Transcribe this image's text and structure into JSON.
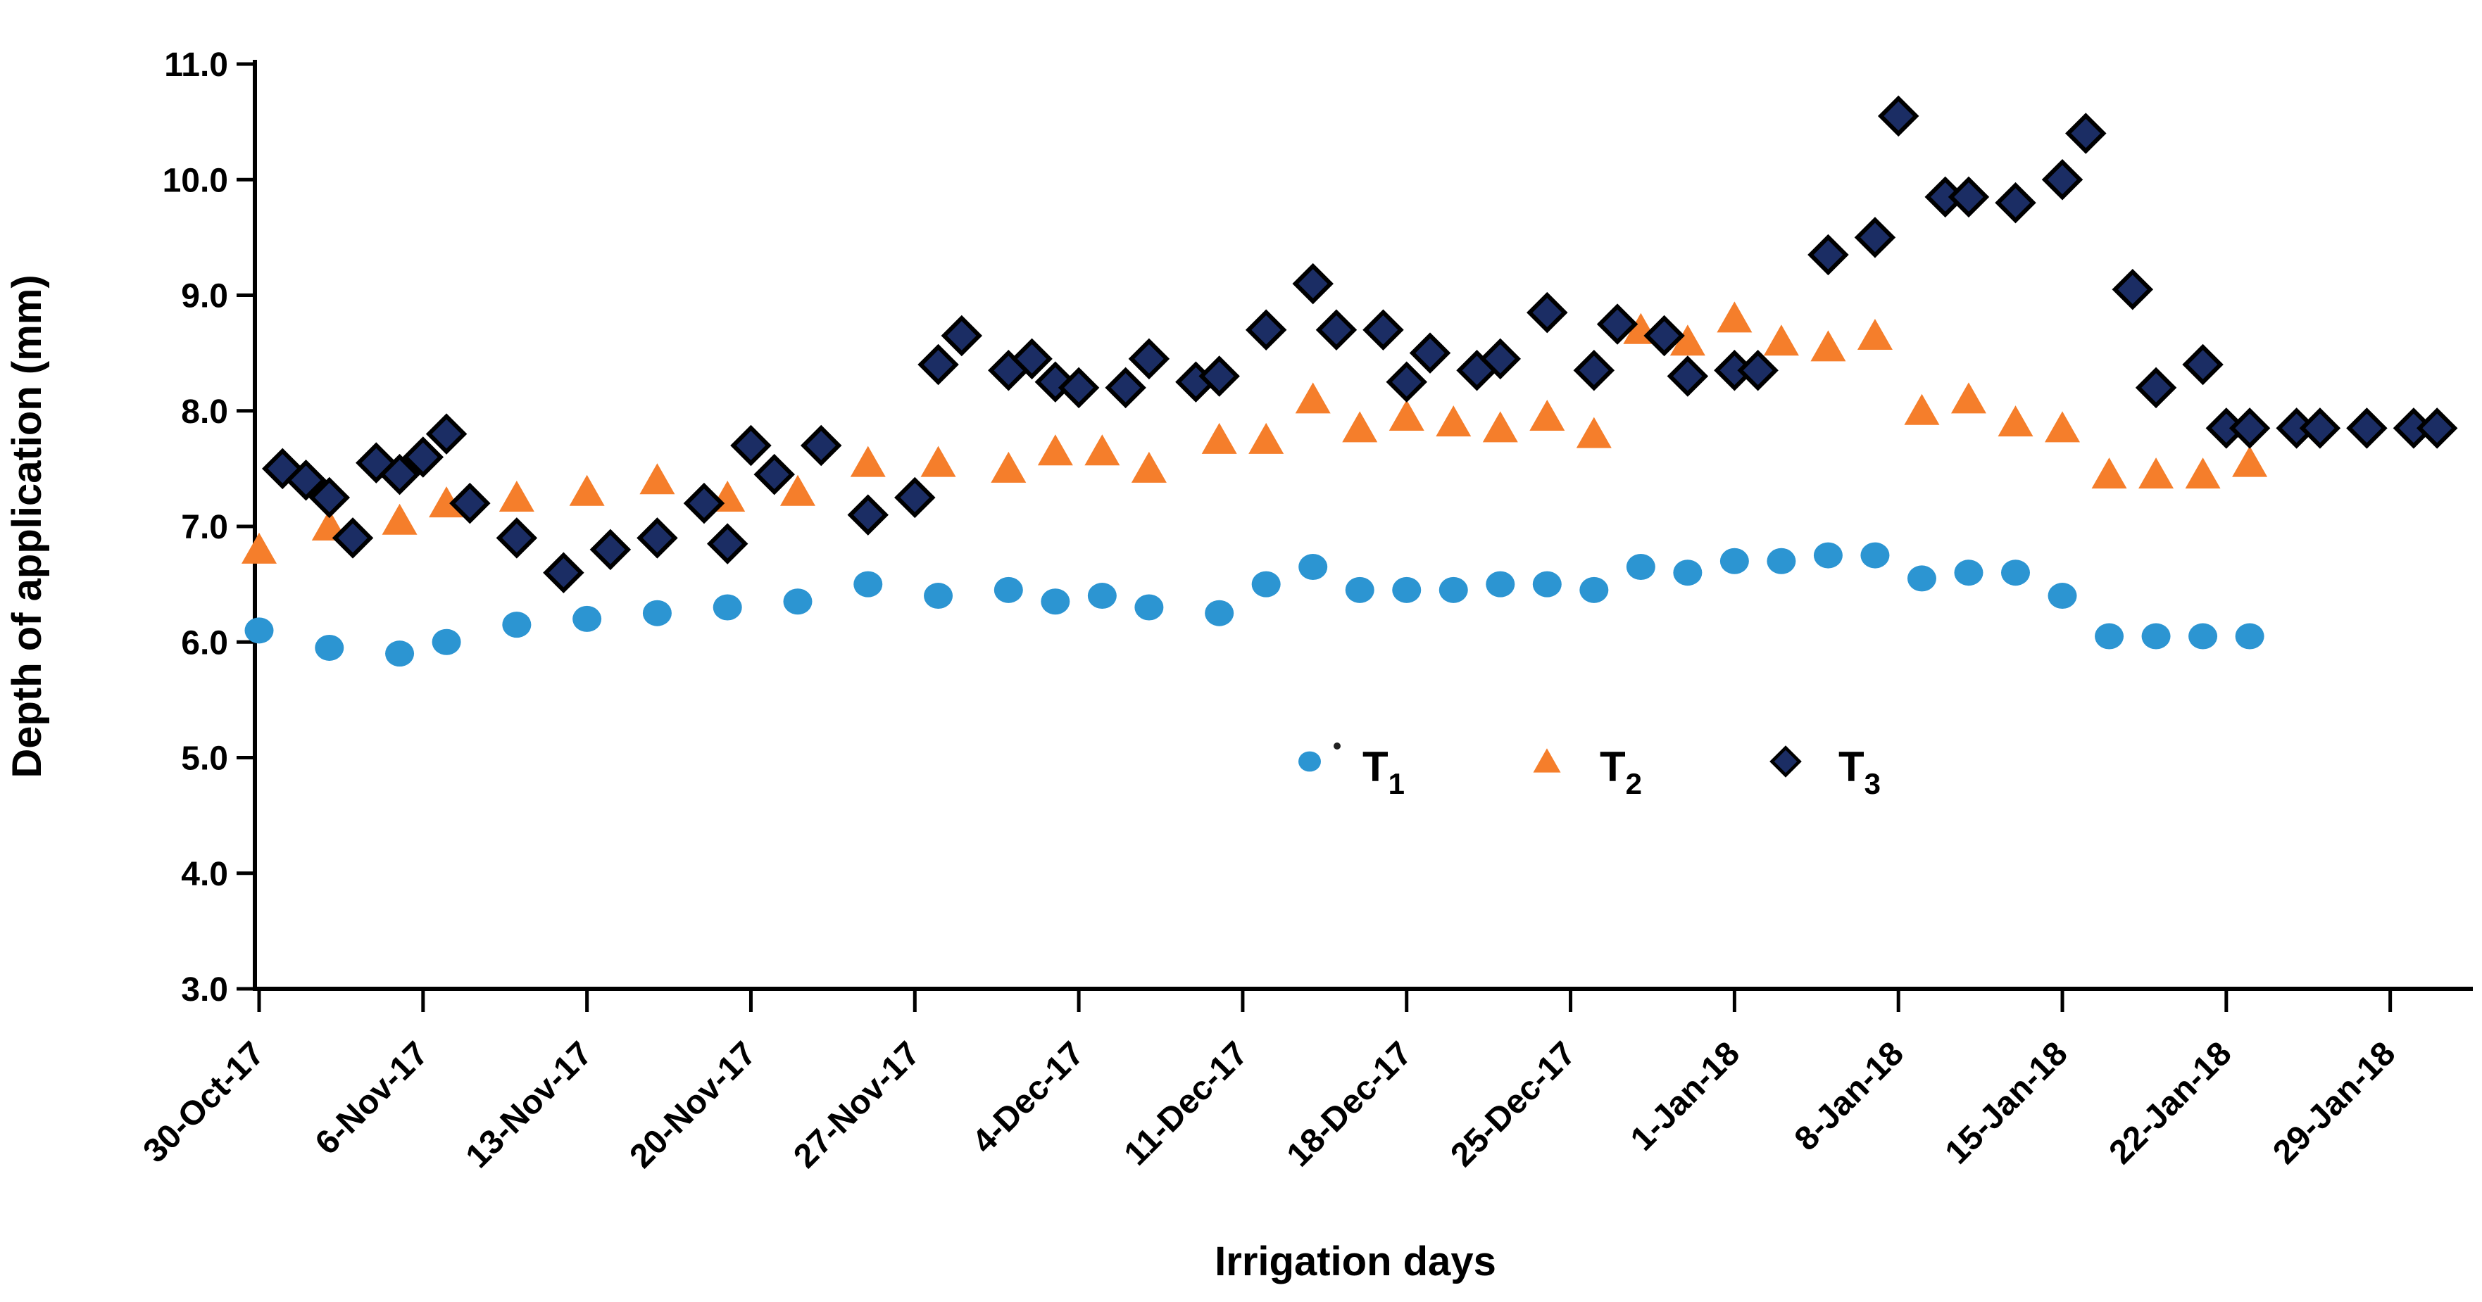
{
  "chart_data": {
    "type": "scatter",
    "title": "",
    "x_axis": {
      "title": "Irrigation days",
      "unit": "dates, weekly ticks",
      "tick_labels": [
        "30-Oct-17",
        "6-Nov-17",
        "13-Nov-17",
        "20-Nov-17",
        "27-Nov-17",
        "4-Dec-17",
        "11-Dec-17",
        "18-Dec-17",
        "25-Dec-17",
        "1-Jan-18",
        "8-Jan-18",
        "15-Jan-18",
        "22-Jan-18",
        "29-Jan-18"
      ],
      "tick_days": [
        0,
        7,
        14,
        21,
        28,
        35,
        42,
        49,
        56,
        63,
        70,
        77,
        84,
        91
      ],
      "day_zero_date": "30-Oct-17",
      "grid": false
    },
    "y_axis": {
      "title": "Depth of application (mm)",
      "min": 3.0,
      "max": 11.0,
      "step": 1.0,
      "tick_labels": [
        "3.0",
        "4.0",
        "5.0",
        "6.0",
        "7.0",
        "8.0",
        "9.0",
        "10.0",
        "11.0"
      ],
      "tick_values": [
        3,
        4,
        5,
        6,
        7,
        8,
        9,
        10,
        11
      ],
      "grid": false
    },
    "series": [
      {
        "name": "T1",
        "label_base": "T",
        "label_sub": "1",
        "marker": "circle",
        "color": "#2C95D2",
        "points_day_value": [
          [
            0,
            6.1
          ],
          [
            3,
            5.95
          ],
          [
            6,
            5.9
          ],
          [
            8,
            6.0
          ],
          [
            11,
            6.15
          ],
          [
            14,
            6.2
          ],
          [
            17,
            6.25
          ],
          [
            20,
            6.3
          ],
          [
            23,
            6.35
          ],
          [
            26,
            6.5
          ],
          [
            29,
            6.4
          ],
          [
            32,
            6.45
          ],
          [
            34,
            6.35
          ],
          [
            36,
            6.4
          ],
          [
            38,
            6.3
          ],
          [
            41,
            6.25
          ],
          [
            43,
            6.5
          ],
          [
            45,
            6.65
          ],
          [
            47,
            6.45
          ],
          [
            49,
            6.45
          ],
          [
            51,
            6.45
          ],
          [
            53,
            6.5
          ],
          [
            55,
            6.5
          ],
          [
            57,
            6.45
          ],
          [
            59,
            6.65
          ],
          [
            61,
            6.6
          ],
          [
            63,
            6.7
          ],
          [
            65,
            6.7
          ],
          [
            67,
            6.75
          ],
          [
            69,
            6.75
          ],
          [
            71,
            6.55
          ],
          [
            73,
            6.6
          ],
          [
            75,
            6.6
          ],
          [
            77,
            6.4
          ],
          [
            79,
            6.05
          ],
          [
            81,
            6.05
          ],
          [
            83,
            6.05
          ],
          [
            85,
            6.05
          ]
        ]
      },
      {
        "name": "T2",
        "label_base": "T",
        "label_sub": "2",
        "marker": "triangle",
        "color": "#F57E2B",
        "points_day_value": [
          [
            0,
            6.8
          ],
          [
            3,
            7.0
          ],
          [
            6,
            7.05
          ],
          [
            8,
            7.2
          ],
          [
            11,
            7.25
          ],
          [
            14,
            7.3
          ],
          [
            17,
            7.4
          ],
          [
            20,
            7.25
          ],
          [
            23,
            7.3
          ],
          [
            26,
            7.55
          ],
          [
            29,
            7.55
          ],
          [
            32,
            7.5
          ],
          [
            34,
            7.65
          ],
          [
            36,
            7.65
          ],
          [
            38,
            7.5
          ],
          [
            41,
            7.75
          ],
          [
            43,
            7.75
          ],
          [
            45,
            8.1
          ],
          [
            47,
            7.85
          ],
          [
            49,
            7.95
          ],
          [
            51,
            7.9
          ],
          [
            53,
            7.85
          ],
          [
            55,
            7.95
          ],
          [
            57,
            7.8
          ],
          [
            59,
            8.7
          ],
          [
            61,
            8.6
          ],
          [
            63,
            8.8
          ],
          [
            65,
            8.6
          ],
          [
            67,
            8.55
          ],
          [
            69,
            8.65
          ],
          [
            71,
            8.0
          ],
          [
            73,
            8.1
          ],
          [
            75,
            7.9
          ],
          [
            77,
            7.85
          ],
          [
            79,
            7.45
          ],
          [
            81,
            7.45
          ],
          [
            83,
            7.45
          ],
          [
            85,
            7.55
          ]
        ]
      },
      {
        "name": "T3",
        "label_base": "T",
        "label_sub": "3",
        "marker": "diamond",
        "color": "#1B2D64",
        "stroke": "#000000",
        "points_day_value": [
          [
            1,
            7.5
          ],
          [
            2,
            7.4
          ],
          [
            3,
            7.25
          ],
          [
            4,
            6.9
          ],
          [
            5,
            7.55
          ],
          [
            6,
            7.45
          ],
          [
            7,
            7.6
          ],
          [
            8,
            7.8
          ],
          [
            9,
            7.2
          ],
          [
            11,
            6.9
          ],
          [
            13,
            6.6
          ],
          [
            15,
            6.8
          ],
          [
            17,
            6.9
          ],
          [
            19,
            7.2
          ],
          [
            20,
            6.85
          ],
          [
            21,
            7.7
          ],
          [
            22,
            7.45
          ],
          [
            24,
            7.7
          ],
          [
            26,
            7.1
          ],
          [
            28,
            7.25
          ],
          [
            29,
            8.4
          ],
          [
            30,
            8.65
          ],
          [
            32,
            8.35
          ],
          [
            33,
            8.45
          ],
          [
            34,
            8.25
          ],
          [
            35,
            8.2
          ],
          [
            37,
            8.2
          ],
          [
            38,
            8.45
          ],
          [
            40,
            8.25
          ],
          [
            41,
            8.3
          ],
          [
            43,
            8.7
          ],
          [
            45,
            9.1
          ],
          [
            46,
            8.7
          ],
          [
            48,
            8.7
          ],
          [
            49,
            8.25
          ],
          [
            50,
            8.5
          ],
          [
            52,
            8.35
          ],
          [
            53,
            8.45
          ],
          [
            55,
            8.85
          ],
          [
            57,
            8.35
          ],
          [
            58,
            8.75
          ],
          [
            60,
            8.65
          ],
          [
            61,
            8.3
          ],
          [
            63,
            8.35
          ],
          [
            64,
            8.35
          ],
          [
            67,
            9.35
          ],
          [
            69,
            9.5
          ],
          [
            70,
            10.55
          ],
          [
            72,
            9.85
          ],
          [
            73,
            9.85
          ],
          [
            75,
            9.8
          ],
          [
            77,
            10.0
          ],
          [
            78,
            10.4
          ],
          [
            80,
            9.05
          ],
          [
            81,
            8.2
          ],
          [
            83,
            8.4
          ],
          [
            84,
            7.85
          ],
          [
            85,
            7.85
          ],
          [
            87,
            7.85
          ],
          [
            88,
            7.85
          ],
          [
            90,
            7.85
          ],
          [
            92,
            7.85
          ],
          [
            93,
            7.85
          ]
        ]
      }
    ],
    "legend": {
      "position": "inside-center-right",
      "items": [
        {
          "base": "T",
          "sub": "1",
          "series": "T1"
        },
        {
          "base": "T",
          "sub": "2",
          "series": "T2"
        },
        {
          "base": "T",
          "sub": "3",
          "series": "T3"
        }
      ]
    },
    "colors": {
      "axis": "#000000",
      "text": "#000000",
      "t1_blue": "#2C95D2",
      "t2_orange": "#F57E2B",
      "t3_navy": "#1B2D64"
    }
  }
}
